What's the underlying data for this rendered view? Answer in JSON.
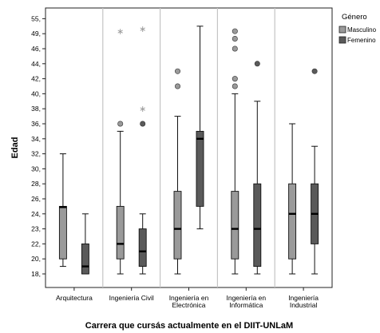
{
  "chart_data": {
    "type": "boxplot",
    "xlabel": "Carrera que cursás actualmente en el DIIT-UNLaM",
    "ylabel": "Edad",
    "legend": {
      "title": "Género",
      "position": "right"
    },
    "yticks": [
      "18",
      "20",
      "22",
      "23",
      "24",
      "26",
      "28",
      "30",
      "32",
      "34",
      "36",
      "38",
      "40",
      "42",
      "44",
      "46",
      "49",
      "55"
    ],
    "categories": [
      [
        "Arquitectura"
      ],
      [
        "Ingeniería Civil"
      ],
      [
        "Ingeniería en",
        "Electrónica"
      ],
      [
        "Ingeniería en",
        "Informática"
      ],
      [
        "Ingeniería",
        "Industrial"
      ]
    ],
    "series": [
      {
        "name": "Masculino",
        "color": "#9a9a9a"
      },
      {
        "name": "Femenino",
        "color": "#5a5a5a"
      }
    ],
    "boxes": [
      {
        "category": 0,
        "series": 0,
        "min": 19,
        "q1": 20,
        "median": 24.9,
        "q3": 25,
        "max": 32,
        "outliers": [],
        "extremes": []
      },
      {
        "category": 0,
        "series": 1,
        "min": 18,
        "q1": 18,
        "median": 19,
        "q3": 22,
        "max": 24,
        "outliers": [],
        "extremes": []
      },
      {
        "category": 1,
        "series": 0,
        "min": 18,
        "q1": 20,
        "median": 22,
        "q3": 25,
        "max": 35,
        "outliers": [
          36
        ],
        "extremes": [
          50
        ]
      },
      {
        "category": 1,
        "series": 1,
        "min": 18,
        "q1": 19,
        "median": 21,
        "q3": 23,
        "max": 24,
        "outliers": [
          36
        ],
        "extremes": [
          38,
          51
        ]
      },
      {
        "category": 2,
        "series": 0,
        "min": 18,
        "q1": 20,
        "median": 23,
        "q3": 27,
        "max": 37,
        "outliers": [
          41,
          43
        ],
        "extremes": []
      },
      {
        "category": 2,
        "series": 1,
        "min": 23,
        "q1": 25,
        "median": 34,
        "q3": 35,
        "max": 52,
        "outliers": [],
        "extremes": []
      },
      {
        "category": 3,
        "series": 0,
        "min": 18,
        "q1": 20,
        "median": 23,
        "q3": 27,
        "max": 40,
        "outliers": [
          41,
          42,
          46,
          48,
          50
        ],
        "extremes": []
      },
      {
        "category": 3,
        "series": 1,
        "min": 18,
        "q1": 19,
        "median": 23,
        "q3": 28,
        "max": 39,
        "outliers": [
          44
        ],
        "extremes": []
      },
      {
        "category": 4,
        "series": 0,
        "min": 18,
        "q1": 20,
        "median": 24,
        "q3": 28,
        "max": 36,
        "outliers": [],
        "extremes": []
      },
      {
        "category": 4,
        "series": 1,
        "min": 18,
        "q1": 22,
        "median": 24,
        "q3": 28,
        "max": 33,
        "outliers": [
          43
        ],
        "extremes": []
      }
    ]
  }
}
